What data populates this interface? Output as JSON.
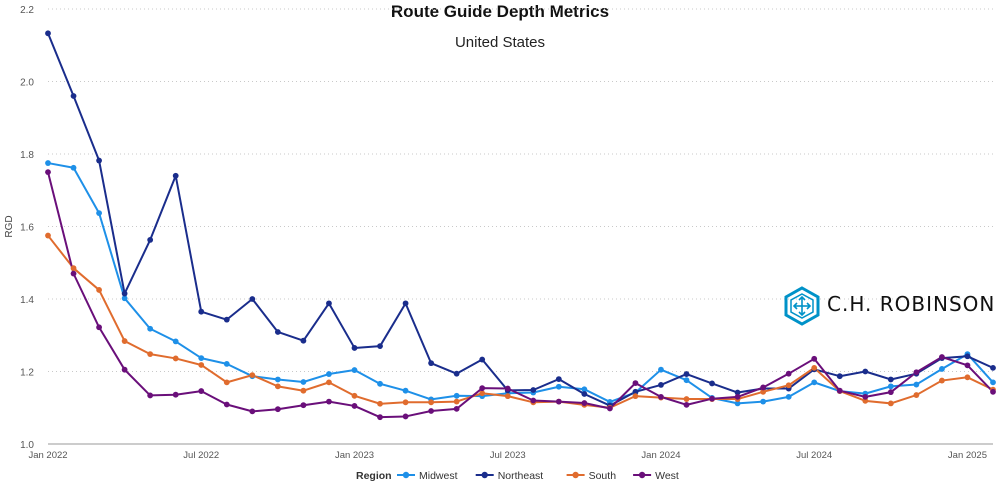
{
  "header": {
    "title": "Route Guide Depth Metrics",
    "subtitle": "United States"
  },
  "brand": {
    "name": "C.H. ROBINSON",
    "color": "#0092c8"
  },
  "legend": {
    "title": "Region"
  },
  "chart_data": {
    "type": "line",
    "title": "Route Guide Depth Metrics",
    "subtitle": "United States",
    "xlabel": "",
    "ylabel": "RGD",
    "ylim": [
      1.0,
      2.2
    ],
    "yticks": [
      "1.0",
      "1.2",
      "1.4",
      "1.6",
      "1.8",
      "2.0",
      "2.2"
    ],
    "x": [
      "2022-01",
      "2022-02",
      "2022-03",
      "2022-04",
      "2022-05",
      "2022-06",
      "2022-07",
      "2022-08",
      "2022-09",
      "2022-10",
      "2022-11",
      "2022-12",
      "2023-01",
      "2023-02",
      "2023-03",
      "2023-04",
      "2023-05",
      "2023-06",
      "2023-07",
      "2023-08",
      "2023-09",
      "2023-10",
      "2023-11",
      "2023-12",
      "2024-01",
      "2024-02",
      "2024-03",
      "2024-04",
      "2024-05",
      "2024-06",
      "2024-07",
      "2024-08",
      "2024-09",
      "2024-10",
      "2024-11",
      "2024-12",
      "2025-01",
      "2025-02"
    ],
    "xticks": [
      {
        "x": "2022-01",
        "label": "Jan 2022"
      },
      {
        "x": "2022-07",
        "label": "Jul 2022"
      },
      {
        "x": "2023-01",
        "label": "Jan 2023"
      },
      {
        "x": "2023-07",
        "label": "Jul 2023"
      },
      {
        "x": "2024-01",
        "label": "Jan 2024"
      },
      {
        "x": "2024-07",
        "label": "Jul 2024"
      },
      {
        "x": "2025-01",
        "label": "Jan 2025"
      }
    ],
    "grid": "horizontal dotted",
    "legend_position": "bottom",
    "series": [
      {
        "name": "Midwest",
        "color": "#1e90e8",
        "values": [
          1.775,
          1.762,
          1.637,
          1.402,
          1.318,
          1.283,
          1.237,
          1.221,
          1.187,
          1.178,
          1.171,
          1.193,
          1.204,
          1.166,
          1.147,
          1.123,
          1.133,
          1.132,
          1.14,
          1.142,
          1.158,
          1.151,
          1.116,
          1.142,
          1.205,
          1.176,
          1.127,
          1.112,
          1.117,
          1.13,
          1.17,
          1.146,
          1.139,
          1.159,
          1.164,
          1.207,
          1.248,
          1.17
        ]
      },
      {
        "name": "Northeast",
        "color": "#1a2d8c",
        "values": [
          2.133,
          1.96,
          1.782,
          1.415,
          1.563,
          1.74,
          1.365,
          1.343,
          1.4,
          1.309,
          1.285,
          1.388,
          1.265,
          1.27,
          1.388,
          1.223,
          1.194,
          1.233,
          1.148,
          1.149,
          1.179,
          1.138,
          1.106,
          1.144,
          1.163,
          1.193,
          1.167,
          1.142,
          1.153,
          1.153,
          1.206,
          1.187,
          1.2,
          1.178,
          1.194,
          1.237,
          1.242,
          1.21
        ]
      },
      {
        "name": "South",
        "color": "#e06c2e",
        "values": [
          1.575,
          1.485,
          1.425,
          1.284,
          1.248,
          1.236,
          1.218,
          1.17,
          1.19,
          1.159,
          1.147,
          1.17,
          1.133,
          1.111,
          1.115,
          1.115,
          1.117,
          1.14,
          1.132,
          1.115,
          1.117,
          1.108,
          1.1,
          1.132,
          1.128,
          1.124,
          1.124,
          1.124,
          1.144,
          1.162,
          1.21,
          1.146,
          1.119,
          1.112,
          1.135,
          1.175,
          1.184,
          1.15
        ]
      },
      {
        "name": "West",
        "color": "#6a0f7a",
        "values": [
          1.75,
          1.47,
          1.322,
          1.205,
          1.134,
          1.136,
          1.146,
          1.109,
          1.09,
          1.096,
          1.107,
          1.117,
          1.105,
          1.074,
          1.076,
          1.091,
          1.097,
          1.154,
          1.153,
          1.12,
          1.117,
          1.113,
          1.098,
          1.168,
          1.13,
          1.108,
          1.125,
          1.13,
          1.156,
          1.194,
          1.235,
          1.147,
          1.13,
          1.143,
          1.198,
          1.24,
          1.217,
          1.144
        ]
      }
    ]
  }
}
